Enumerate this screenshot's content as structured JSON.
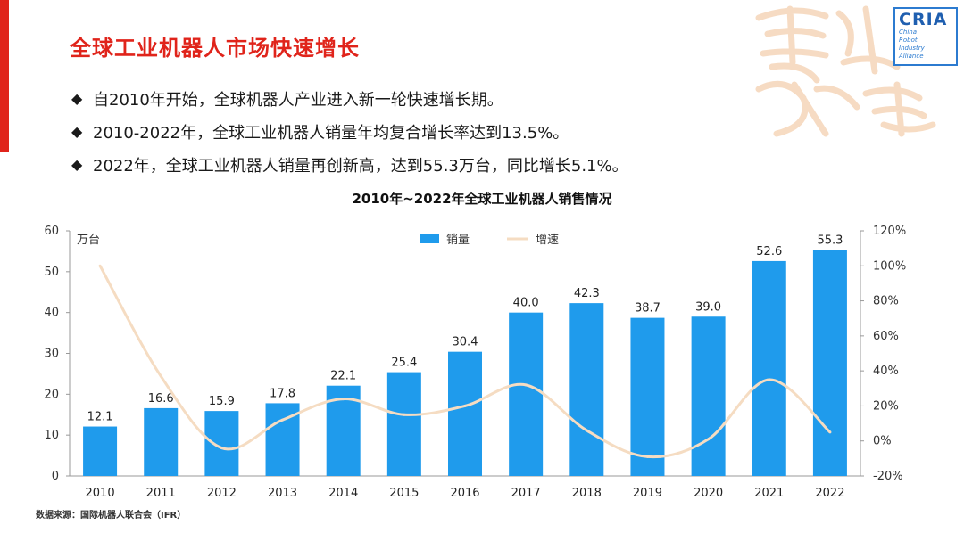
{
  "slide": {
    "title": "全球工业机器人市场快速增长",
    "bullets": [
      "自2010年开始，全球机器人产业进入新一轮快速增长期。",
      "2010-2022年，全球工业机器人销量年均复合增长率达到13.5%。",
      "2022年，全球工业机器人销量再创新高，达到55.3万台，同比增长5.1%。"
    ],
    "bullet_marker": "◆",
    "source": "数据来源：国际机器人联合会（IFR）",
    "logo": {
      "word": "CRIA",
      "sub": [
        "China",
        "Robot",
        "Industry",
        "Alliance"
      ]
    },
    "seal_text": "吉祥如意",
    "colors": {
      "accent": "#e0241b",
      "bar": "#1f9bec",
      "line": "#f5dcc2",
      "logo": "#2c7bd0"
    }
  },
  "chart_data": {
    "type": "bar+line",
    "title": "2010年~2022年全球工业机器人销售情况",
    "categories": [
      "2010",
      "2011",
      "2012",
      "2013",
      "2014",
      "2015",
      "2016",
      "2017",
      "2018",
      "2019",
      "2020",
      "2021",
      "2022"
    ],
    "series": [
      {
        "name": "销量",
        "type": "bar",
        "axis": "left",
        "values": [
          12.1,
          16.6,
          15.9,
          17.8,
          22.1,
          25.4,
          30.4,
          40.0,
          42.3,
          38.7,
          39.0,
          52.6,
          55.3
        ],
        "labels": [
          "12.1",
          "16.6",
          "15.9",
          "17.8",
          "22.1",
          "25.4",
          "30.4",
          "40.0",
          "42.3",
          "38.7",
          "39.0",
          "52.6",
          "55.3"
        ]
      },
      {
        "name": "增速",
        "type": "line",
        "axis": "right",
        "values": [
          100,
          37,
          -4,
          12,
          24,
          15,
          20,
          32,
          6,
          -9,
          1,
          35,
          5
        ]
      }
    ],
    "y_left": {
      "unit": "万台",
      "min": 0,
      "max": 60,
      "ticks": [
        "0",
        "10",
        "20",
        "30",
        "40",
        "50",
        "60"
      ]
    },
    "y_right": {
      "min": -20,
      "max": 120,
      "ticks": [
        "-20%",
        "0%",
        "20%",
        "40%",
        "60%",
        "80%",
        "100%",
        "120%"
      ]
    },
    "legend": {
      "position": "top-center"
    }
  }
}
